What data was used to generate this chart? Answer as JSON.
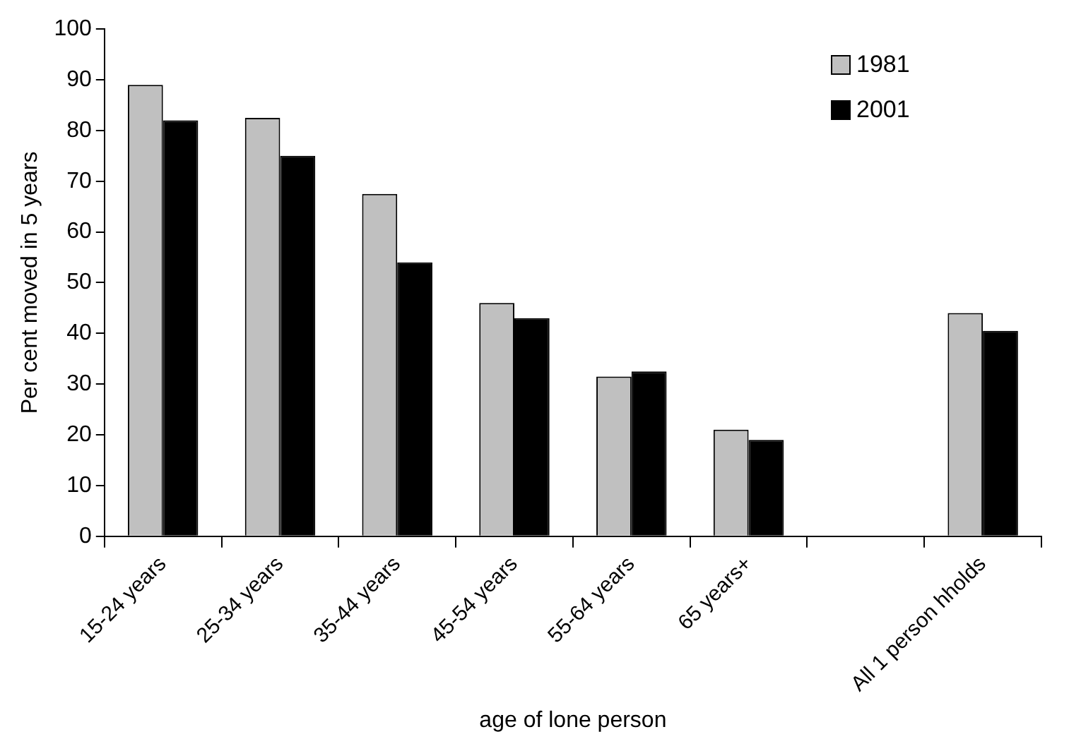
{
  "chart_data": {
    "type": "bar",
    "xlabel": "age of lone person",
    "ylabel": "Per cent moved in 5 years",
    "categories": [
      "15-24 years",
      "25-34 years",
      "35-44 years",
      "45-54 years",
      "55-64 years",
      "65 years+",
      null,
      "All 1 person hholds"
    ],
    "series": [
      {
        "name": "1981",
        "color": "#c0c0c0",
        "values": [
          89,
          82.5,
          67.5,
          46,
          31.5,
          21,
          null,
          44
        ]
      },
      {
        "name": "2001",
        "color": "#000000",
        "values": [
          82,
          75,
          54,
          43,
          32.5,
          19,
          null,
          40.5
        ]
      }
    ],
    "ylim": [
      0,
      100
    ],
    "yticks": [
      0,
      10,
      20,
      30,
      40,
      50,
      60,
      70,
      80,
      90,
      100
    ],
    "grid": false,
    "legend": "top right"
  }
}
